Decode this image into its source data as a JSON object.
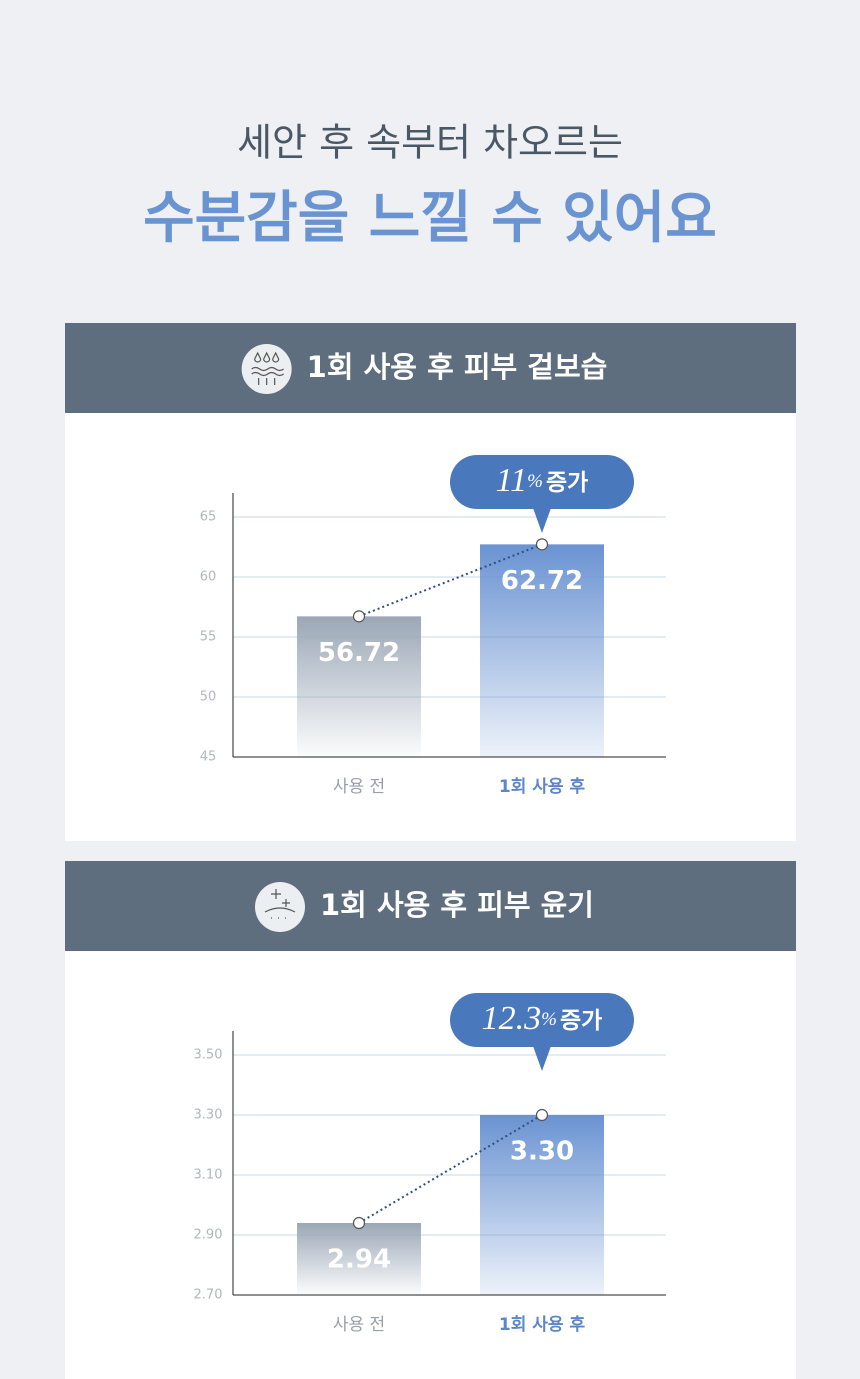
{
  "header": {
    "line1": "세안 후 속부터 차오르는",
    "line2": "수분감을 느낄 수 있어요"
  },
  "chart_data": [
    {
      "type": "bar",
      "title": "1회 사용 후 피부 겉보습",
      "categories": [
        "사용 전",
        "1회 사용 후"
      ],
      "values": [
        56.72,
        62.72
      ],
      "colors": [
        "#9ba7b6",
        "#6a93d2"
      ],
      "ylim": [
        45,
        67
      ],
      "yticks": [
        45,
        50,
        55,
        60,
        65
      ],
      "grid": true,
      "annotation": [
        "11",
        "%",
        "증가"
      ]
    },
    {
      "type": "bar",
      "title": "1회 사용 후 피부 윤기",
      "categories": [
        "사용 전",
        "1회 사용 후"
      ],
      "values": [
        2.94,
        3.3
      ],
      "value_labels": [
        "2.94",
        "3.30"
      ],
      "colors": [
        "#9ba7b6",
        "#6a93d2"
      ],
      "ylim": [
        2.7,
        3.58
      ],
      "yticks": [
        {
          "value": 2.7,
          "label": "2.70"
        },
        {
          "value": 2.9,
          "label": "2.90"
        },
        {
          "value": 3.1,
          "label": "3.10"
        },
        {
          "value": 3.3,
          "label": "3.30"
        },
        {
          "value": 3.5,
          "label": "3.50"
        }
      ],
      "grid": true,
      "annotation": [
        "12.3",
        "%",
        "증가"
      ]
    }
  ]
}
